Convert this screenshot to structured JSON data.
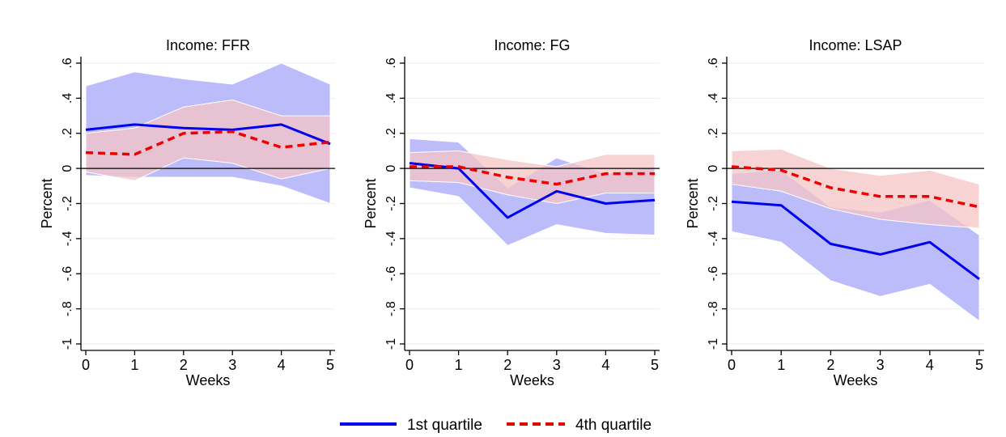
{
  "chart_data": [
    {
      "type": "line",
      "title": "Income: FFR",
      "xlabel": "Weeks",
      "ylabel": "Percent",
      "x": [
        0,
        1,
        2,
        3,
        4,
        5
      ],
      "xticks": [
        "0",
        "1",
        "2",
        "3",
        "4",
        "5"
      ],
      "yticks": [
        {
          "value": 0.6,
          "label": ".6"
        },
        {
          "value": 0.4,
          "label": ".4"
        },
        {
          "value": 0.2,
          "label": ".2"
        },
        {
          "value": 0,
          "label": "0"
        },
        {
          "value": -0.2,
          "label": "-.2"
        },
        {
          "value": -0.4,
          "label": "-.4"
        },
        {
          "value": -0.6,
          "label": "-.6"
        },
        {
          "value": -0.8,
          "label": "-.8"
        },
        {
          "value": -1,
          "label": "-1"
        }
      ],
      "xlim": [
        0,
        5
      ],
      "ylim": [
        -1,
        0.6
      ],
      "series": [
        {
          "name": "1st quartile",
          "values": [
            0.22,
            0.25,
            0.23,
            0.22,
            0.25,
            0.14
          ],
          "lower": [
            -0.04,
            -0.05,
            -0.05,
            -0.05,
            -0.1,
            -0.2
          ],
          "upper": [
            0.47,
            0.55,
            0.51,
            0.48,
            0.6,
            0.48
          ]
        },
        {
          "name": "4th quartile",
          "values": [
            0.09,
            0.08,
            0.2,
            0.21,
            0.12,
            0.15
          ],
          "lower": [
            -0.02,
            -0.07,
            0.06,
            0.03,
            -0.06,
            0.0
          ],
          "upper": [
            0.2,
            0.23,
            0.35,
            0.39,
            0.3,
            0.3
          ]
        }
      ]
    },
    {
      "type": "line",
      "title": "Income: FG",
      "xlabel": "Weeks",
      "ylabel": "Percent",
      "x": [
        0,
        1,
        2,
        3,
        4,
        5
      ],
      "xticks": [
        "0",
        "1",
        "2",
        "3",
        "4",
        "5"
      ],
      "yticks": [
        {
          "value": 0.6,
          "label": ".6"
        },
        {
          "value": 0.4,
          "label": ".4"
        },
        {
          "value": 0.2,
          "label": ".2"
        },
        {
          "value": 0,
          "label": "0"
        },
        {
          "value": -0.2,
          "label": "-.2"
        },
        {
          "value": -0.4,
          "label": "-.4"
        },
        {
          "value": -0.6,
          "label": "-.6"
        },
        {
          "value": -0.8,
          "label": "-.8"
        },
        {
          "value": -1,
          "label": "-1"
        }
      ],
      "xlim": [
        0,
        5
      ],
      "ylim": [
        -1,
        0.6
      ],
      "series": [
        {
          "name": "1st quartile",
          "values": [
            0.03,
            0.0,
            -0.28,
            -0.13,
            -0.2,
            -0.18
          ],
          "lower": [
            -0.11,
            -0.16,
            -0.44,
            -0.32,
            -0.37,
            -0.38
          ],
          "upper": [
            0.17,
            0.15,
            -0.11,
            0.06,
            -0.03,
            0.01
          ]
        },
        {
          "name": "4th quartile",
          "values": [
            0.01,
            0.01,
            -0.05,
            -0.09,
            -0.03,
            -0.03
          ],
          "lower": [
            -0.07,
            -0.08,
            -0.15,
            -0.2,
            -0.14,
            -0.14
          ],
          "upper": [
            0.09,
            0.1,
            0.05,
            0.01,
            0.08,
            0.08
          ]
        }
      ]
    },
    {
      "type": "line",
      "title": "Income: LSAP",
      "xlabel": "Weeks",
      "ylabel": "Percent",
      "x": [
        0,
        1,
        2,
        3,
        4,
        5
      ],
      "xticks": [
        "0",
        "1",
        "2",
        "3",
        "4",
        "5"
      ],
      "yticks": [
        {
          "value": 0.6,
          "label": ".6"
        },
        {
          "value": 0.4,
          "label": ".4"
        },
        {
          "value": 0.2,
          "label": ".2"
        },
        {
          "value": 0,
          "label": "0"
        },
        {
          "value": -0.2,
          "label": "-.2"
        },
        {
          "value": -0.4,
          "label": "-.4"
        },
        {
          "value": -0.6,
          "label": "-.6"
        },
        {
          "value": -0.8,
          "label": "-.8"
        },
        {
          "value": -1,
          "label": "-1"
        }
      ],
      "xlim": [
        0,
        5
      ],
      "ylim": [
        -1,
        0.6
      ],
      "series": [
        {
          "name": "1st quartile",
          "values": [
            -0.19,
            -0.21,
            -0.43,
            -0.49,
            -0.42,
            -0.63
          ],
          "lower": [
            -0.36,
            -0.42,
            -0.64,
            -0.73,
            -0.66,
            -0.87
          ],
          "upper": [
            -0.03,
            -0.01,
            -0.22,
            -0.25,
            -0.18,
            -0.38
          ]
        },
        {
          "name": "4th quartile",
          "values": [
            0.01,
            -0.01,
            -0.11,
            -0.16,
            -0.16,
            -0.22
          ],
          "lower": [
            -0.09,
            -0.13,
            -0.23,
            -0.29,
            -0.32,
            -0.34
          ],
          "upper": [
            0.1,
            0.11,
            0.0,
            -0.04,
            -0.01,
            -0.09
          ]
        }
      ]
    }
  ],
  "legend": {
    "position": "bottom-center",
    "items": [
      {
        "label": "1st quartile",
        "color": "#0000ee",
        "dash": "solid"
      },
      {
        "label": "4th quartile",
        "color": "#ee0000",
        "dash": "dashed"
      }
    ]
  },
  "colors": {
    "q1_line": "#0000ee",
    "q4_line": "#ee0000",
    "q1_band": "#bcbcfb",
    "q4_band": "#f5c4c4",
    "overlap": "#d6a7cf",
    "overlap_q1": "#7f66d9",
    "zero_line": "#000000",
    "grid": "#eeeeee",
    "axis": "#000000"
  }
}
